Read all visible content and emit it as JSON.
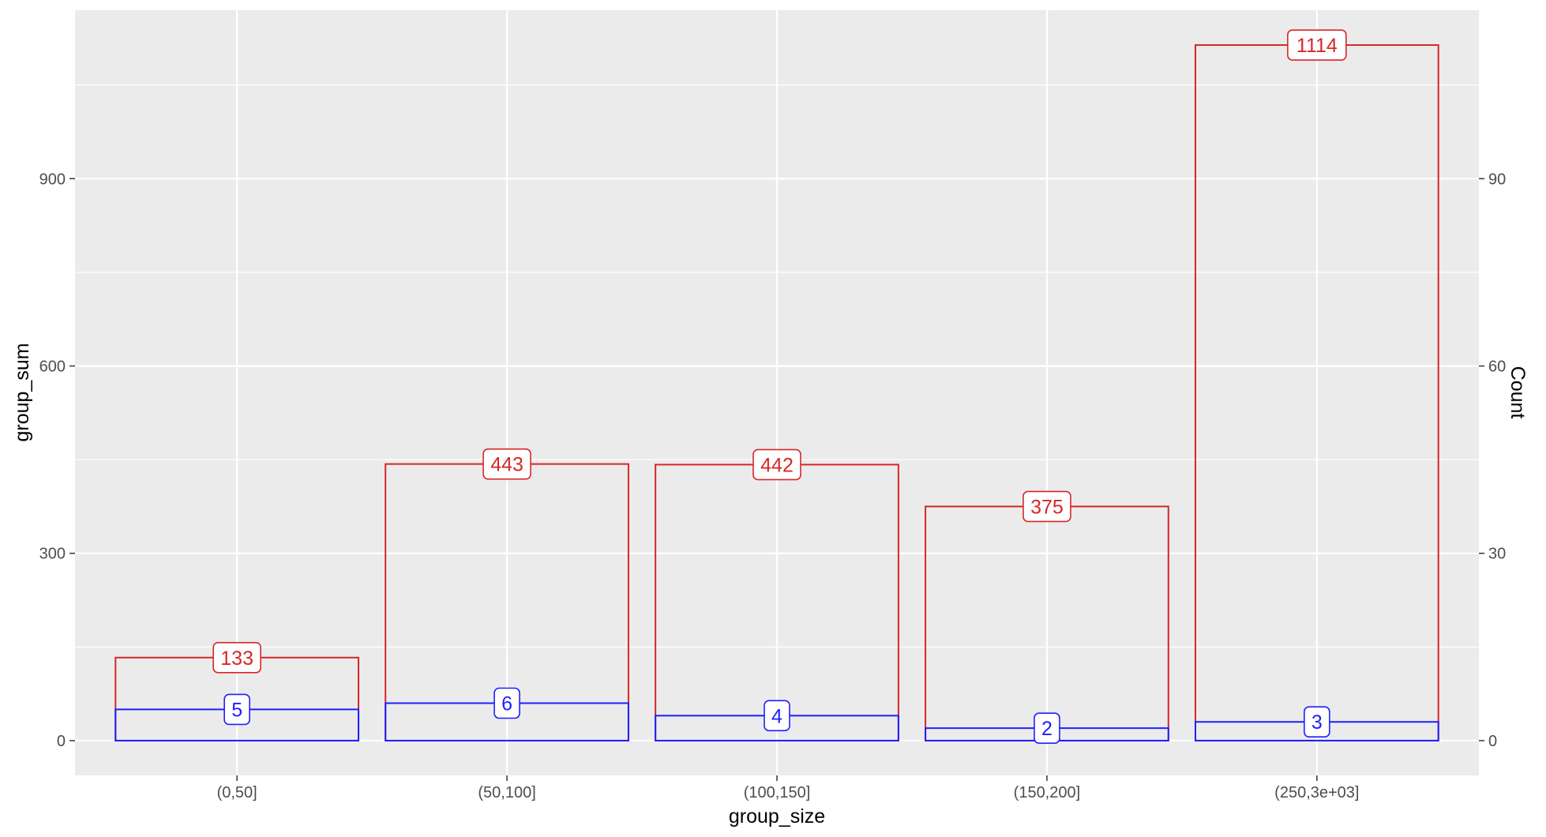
{
  "chart_data": {
    "type": "bar",
    "categories": [
      "(0,50]",
      "(50,100]",
      "(100,150]",
      "(150,200]",
      "(250,3e+03]"
    ],
    "series": [
      {
        "axis": "left",
        "color": "#d62728",
        "values": [
          133,
          443,
          442,
          375,
          1114
        ],
        "labels": [
          "133",
          "443",
          "442",
          "375",
          "1114"
        ]
      },
      {
        "axis": "right",
        "color": "#1f1fff",
        "values": [
          5,
          6,
          4,
          2,
          3
        ],
        "labels": [
          "5",
          "6",
          "4",
          "2",
          "3"
        ]
      }
    ],
    "xlabel": "group_size",
    "ylabel": "group_sum",
    "ylabel_right": "Count",
    "ylim": [
      -55.7,
      1169.7
    ],
    "ylim_right": [
      -5.57,
      116.97
    ],
    "yticks": [
      0,
      300,
      600,
      900
    ],
    "yticks_right": [
      0,
      30,
      60,
      90
    ],
    "ytick_labels": [
      "0",
      "300",
      "600",
      "900"
    ],
    "ytick_labels_right": [
      "0",
      "30",
      "60",
      "90"
    ],
    "grid": true,
    "legend": "none",
    "panel_color": "#ebebeb",
    "grid_color": "#ffffff"
  }
}
